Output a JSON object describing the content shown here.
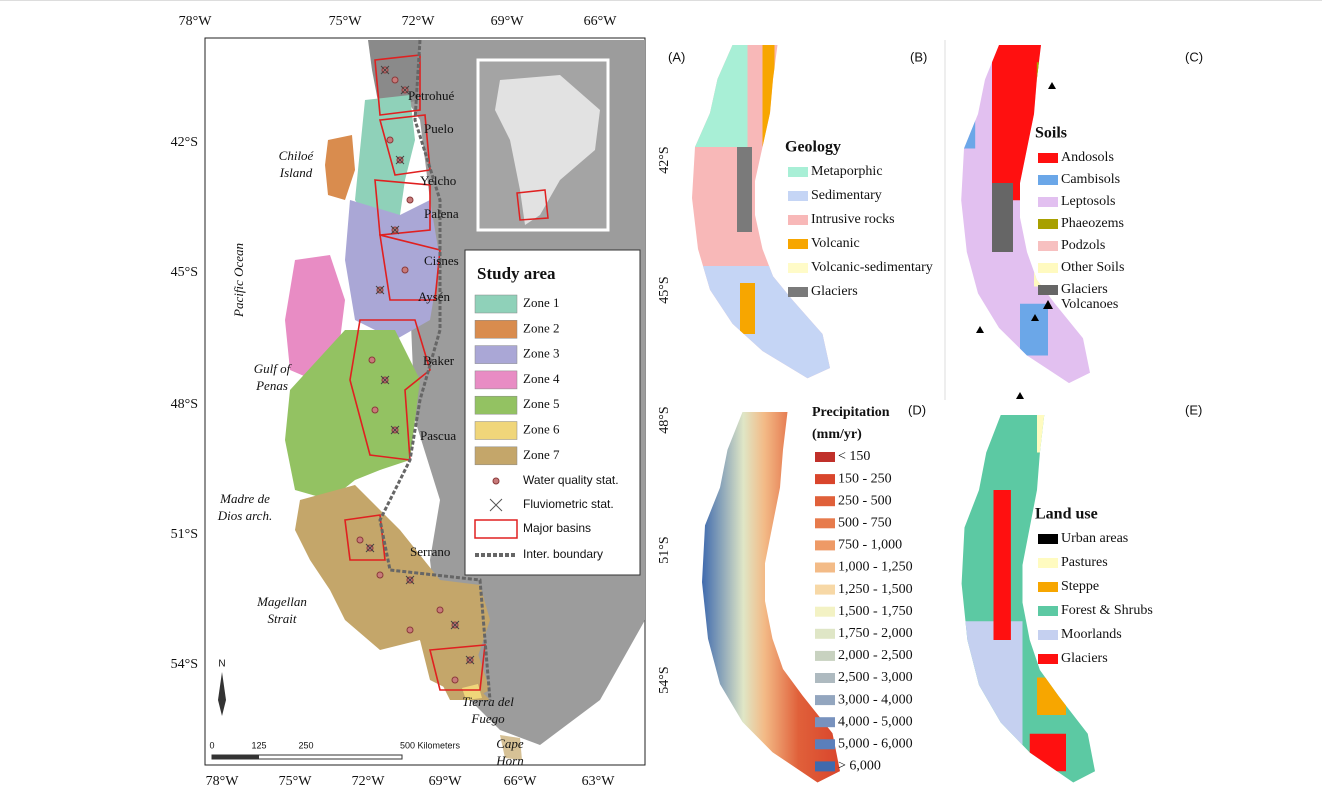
{
  "main_map": {
    "lon_labels_top": [
      "78°W",
      "75°W",
      "72°W",
      "69°W",
      "66°W"
    ],
    "lon_labels_bottom": [
      "78°W",
      "75°W",
      "72°W",
      "69°W",
      "66°W",
      "63°W"
    ],
    "lat_labels_left": [
      "42°S",
      "45°S",
      "48°S",
      "51°S",
      "54°S"
    ],
    "lat_labels_right": [
      "42°S",
      "45°S",
      "48°S",
      "51°S",
      "54°S"
    ],
    "basins": [
      "Petrohué",
      "Puelo",
      "Yelcho",
      "Palena",
      "Cisnes",
      "Aysén",
      "Baker",
      "Pascua",
      "Serrano"
    ],
    "places": [
      [
        "Chiloé",
        "Island"
      ],
      [
        "Pacific Ocean"
      ],
      [
        "Gulf of",
        "Penas"
      ],
      [
        "Madre de",
        "Dios arch."
      ],
      [
        "Magellan",
        "Strait"
      ],
      [
        "Tierra del",
        "Fuego"
      ],
      [
        "Cape",
        "Horn"
      ]
    ],
    "legend": {
      "title": "Study area",
      "zones": [
        {
          "label": "Zone 1",
          "color": "#8fd1b9"
        },
        {
          "label": "Zone 2",
          "color": "#d98c4e"
        },
        {
          "label": "Zone 3",
          "color": "#aaa7d6"
        },
        {
          "label": "Zone 4",
          "color": "#e88cc4"
        },
        {
          "label": "Zone 5",
          "color": "#93c262"
        },
        {
          "label": "Zone 6",
          "color": "#f0d67a"
        },
        {
          "label": "Zone 7",
          "color": "#c4a66a"
        }
      ],
      "markers": [
        "Water quality stat.",
        "Fluviometric stat.",
        "Major basins",
        "Inter. boundary"
      ]
    },
    "scale_bar": [
      "0",
      "125",
      "250",
      "500 Kilometers"
    ],
    "north": "N"
  },
  "panels": {
    "labels": [
      "(A)",
      "(B)",
      "(C)",
      "(D)",
      "(E)"
    ],
    "geology": {
      "title": "Geology",
      "items": [
        {
          "label": "Metaporphic",
          "color": "#a8efd6"
        },
        {
          "label": "Sedimentary",
          "color": "#c5d5f5"
        },
        {
          "label": "Intrusive rocks",
          "color": "#f8b8b8"
        },
        {
          "label": "Volcanic",
          "color": "#f7a600"
        },
        {
          "label": "Volcanic-sedimentary",
          "color": "#fffbc8"
        },
        {
          "label": "Glaciers",
          "color": "#7a7a7a"
        }
      ]
    },
    "soils": {
      "title": "Soils",
      "items": [
        {
          "label": "Andosols",
          "color": "#ff1010"
        },
        {
          "label": "Cambisols",
          "color": "#6ba7e8"
        },
        {
          "label": "Leptosols",
          "color": "#e2c0f0"
        },
        {
          "label": "Phaeozems",
          "color": "#a8a000"
        },
        {
          "label": "Podzols",
          "color": "#f7c0c0"
        },
        {
          "label": "Other Soils",
          "color": "#fffac0"
        },
        {
          "label": "Glaciers",
          "color": "#666666"
        }
      ],
      "volcanoes": "Volcanoes"
    },
    "precipitation": {
      "title": [
        "Precipitation",
        "(mm/yr)"
      ],
      "items": [
        {
          "label": "< 150",
          "color": "#c0302a"
        },
        {
          "label": "150 - 250",
          "color": "#d9452c"
        },
        {
          "label": "250 - 500",
          "color": "#e0603a"
        },
        {
          "label": "500 - 750",
          "color": "#e77b4c"
        },
        {
          "label": "750 - 1,000",
          "color": "#ee9a66"
        },
        {
          "label": "1,000 - 1,250",
          "color": "#f3bb87"
        },
        {
          "label": "1,250 - 1,500",
          "color": "#f7d8a6"
        },
        {
          "label": "1,500 - 1,750",
          "color": "#f3f2c4"
        },
        {
          "label": "1,750 - 2,000",
          "color": "#dfe6c6"
        },
        {
          "label": "2,000 - 2,500",
          "color": "#c8d2c0"
        },
        {
          "label": "2,500 - 3,000",
          "color": "#aebac0"
        },
        {
          "label": "3,000 - 4,000",
          "color": "#93a6bf"
        },
        {
          "label": "4,000 - 5,000",
          "color": "#7892be"
        },
        {
          "label": "5,000 - 6,000",
          "color": "#5b7fbb"
        },
        {
          "label": "> 6,000",
          "color": "#3f6aae"
        }
      ]
    },
    "land_use": {
      "title": "Land use",
      "items": [
        {
          "label": "Urban areas",
          "color": "#000000"
        },
        {
          "label": "Pastures",
          "color": "#fffbc0"
        },
        {
          "label": "Steppe",
          "color": "#f7a600"
        },
        {
          "label": "Forest & Shrubs",
          "color": "#5cc9a3"
        },
        {
          "label": "Moorlands",
          "color": "#c5d0f0"
        },
        {
          "label": "Glaciers",
          "color": "#ff1010"
        }
      ]
    }
  }
}
